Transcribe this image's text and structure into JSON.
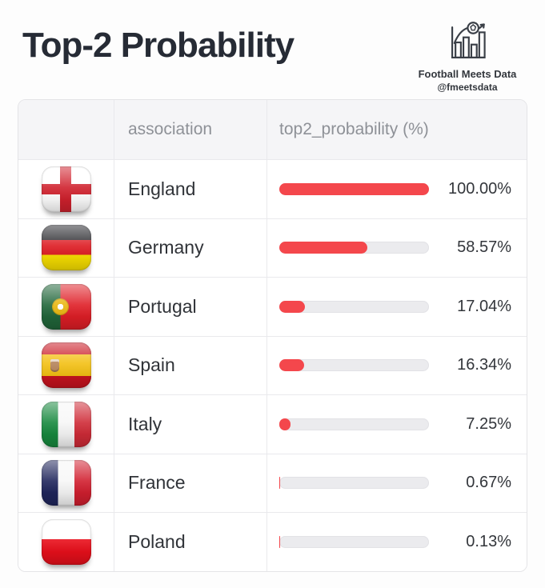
{
  "page": {
    "title": "Top-2 Probability"
  },
  "brand": {
    "name": "Football Meets Data",
    "handle": "@fmeetsdata",
    "icon": "football-bar-chart-icon"
  },
  "table": {
    "headers": {
      "flag": "",
      "association": "association",
      "probability": "top2_probability (%)"
    },
    "rows": [
      {
        "association": "England",
        "flag": "england",
        "value": 100,
        "value_label": "100.00%"
      },
      {
        "association": "Germany",
        "flag": "germany",
        "value": 58.57,
        "value_label": "58.57%"
      },
      {
        "association": "Portugal",
        "flag": "portugal",
        "value": 17.04,
        "value_label": "17.04%"
      },
      {
        "association": "Spain",
        "flag": "spain",
        "value": 16.34,
        "value_label": "16.34%"
      },
      {
        "association": "Italy",
        "flag": "italy",
        "value": 7.25,
        "value_label": "7.25%"
      },
      {
        "association": "France",
        "flag": "france",
        "value": 0.67,
        "value_label": "0.67%"
      },
      {
        "association": "Poland",
        "flag": "poland",
        "value": 0.13,
        "value_label": "0.13%"
      }
    ]
  },
  "colors": {
    "accent_red": "#f4474c",
    "bar_track": "#ebebee",
    "header_bg": "#f5f5f7",
    "title_text": "#262b35",
    "header_text": "#8e9197"
  },
  "chart_data": {
    "type": "bar",
    "orientation": "horizontal",
    "title": "Top-2 Probability",
    "categories": [
      "England",
      "Germany",
      "Portugal",
      "Spain",
      "Italy",
      "France",
      "Poland"
    ],
    "values": [
      100.0,
      58.57,
      17.04,
      16.34,
      7.25,
      0.67,
      0.13
    ],
    "value_labels": [
      "100.00%",
      "58.57%",
      "17.04%",
      "16.34%",
      "7.25%",
      "0.67%",
      "0.13%"
    ],
    "xlabel": "top2_probability (%)",
    "ylabel": "association",
    "xlim": [
      0,
      100
    ],
    "grid": false,
    "legend": false,
    "bar_color": "#f4474c"
  }
}
